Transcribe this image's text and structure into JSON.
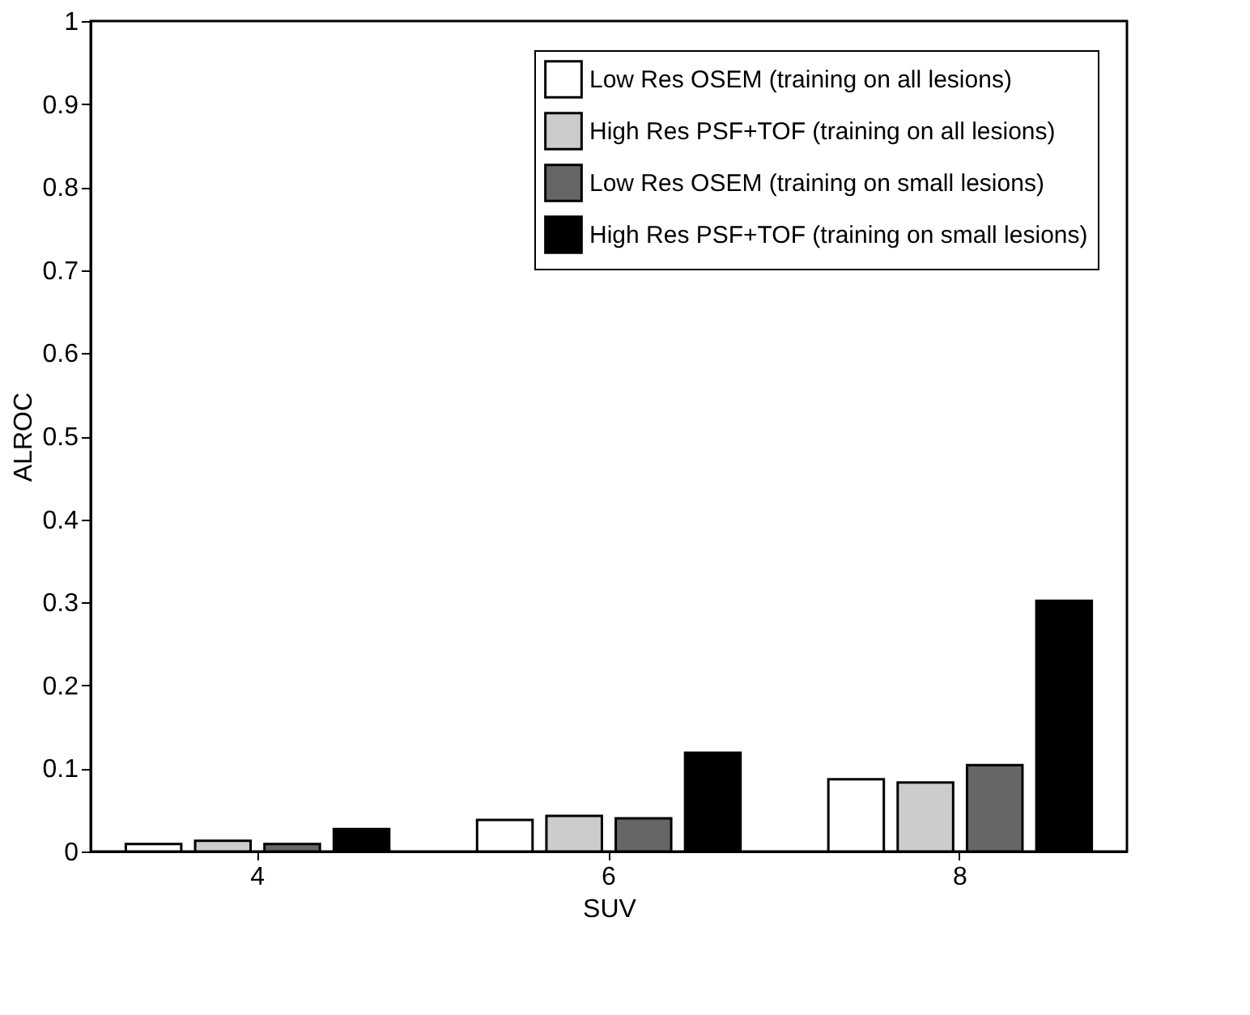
{
  "chart_data": {
    "type": "bar",
    "xlabel": "SUV",
    "ylabel": "ALROC",
    "categories": [
      "4",
      "6",
      "8"
    ],
    "series": [
      {
        "name": "Low Res OSEM (training on all lesions)",
        "color": "#ffffff",
        "values": [
          0.009,
          0.038,
          0.087
        ]
      },
      {
        "name": "High Res PSF+TOF (training on all lesions)",
        "color": "#cccccc",
        "values": [
          0.013,
          0.043,
          0.083
        ]
      },
      {
        "name": "Low Res OSEM (training on small lesions)",
        "color": "#666666",
        "values": [
          0.009,
          0.04,
          0.104
        ]
      },
      {
        "name": "High Res PSF+TOF (training on small lesions)",
        "color": "#000000",
        "values": [
          0.027,
          0.119,
          0.302
        ]
      }
    ],
    "ylim": [
      0,
      1
    ],
    "yticks": [
      0,
      0.1,
      0.2,
      0.3,
      0.4,
      0.5,
      0.6,
      0.7,
      0.8,
      0.9,
      1
    ],
    "grid": false,
    "legend": "top right"
  }
}
